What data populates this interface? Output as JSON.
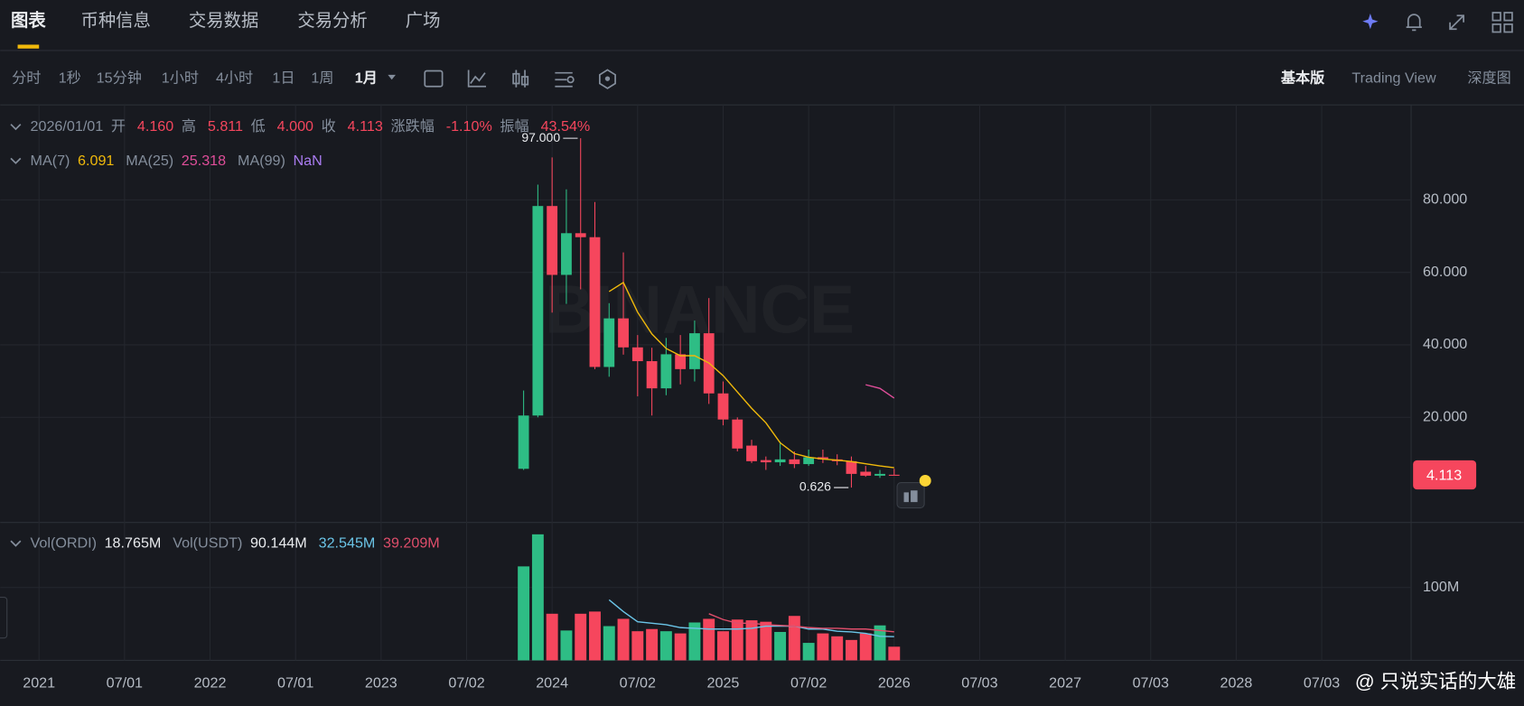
{
  "tabs": [
    "图表",
    "币种信息",
    "交易数据",
    "交易分析",
    "广场"
  ],
  "intervals": [
    "分时",
    "1秒",
    "15分钟",
    "1小时",
    "4小时",
    "1日",
    "1周",
    "1月"
  ],
  "views": [
    "基本版",
    "Trading View",
    "深度图"
  ],
  "logo_watermark": "BINANCE",
  "watermark": "@ 只说实话的大雄",
  "chart_data": [
    {
      "type": "candlestick",
      "legend": [
        {
          "text": "2026/01/01"
        },
        {
          "text": "开"
        },
        {
          "text": "4.160",
          "color": "#f6465d"
        },
        {
          "text": "高"
        },
        {
          "text": "5.811",
          "color": "#f6465d"
        },
        {
          "text": "低"
        },
        {
          "text": "4.000",
          "color": "#f6465d"
        },
        {
          "text": "收"
        },
        {
          "text": "4.113",
          "color": "#f6465d"
        },
        {
          "text": "涨跌幅"
        },
        {
          "text": "-1.10%",
          "color": "#f6465d"
        },
        {
          "text": "振幅"
        },
        {
          "text": "43.54%",
          "color": "#f6465d"
        }
      ],
      "x": [
        "2023-11",
        "2023-12",
        "2024-01",
        "2024-02",
        "2024-03",
        "2024-04",
        "2024-05",
        "2024-06",
        "2024-07",
        "2024-08",
        "2024-09",
        "2024-10",
        "2024-11",
        "2024-12",
        "2025-01",
        "2025-02",
        "2025-03",
        "2025-04",
        "2025-05",
        "2025-06",
        "2025-07",
        "2025-08",
        "2025-09",
        "2025-10",
        "2025-11",
        "2025-12",
        "2026-01"
      ],
      "open": [
        5.8,
        20.5,
        78.3,
        59.3,
        70.8,
        69.7,
        33.9,
        47.3,
        39.3,
        35.5,
        28.0,
        37.4,
        33.3,
        43.2,
        26.6,
        19.4,
        12.2,
        8.2,
        7.6,
        8.4,
        7.1,
        9.0,
        8.4,
        7.9,
        5.0,
        3.9,
        4.16
      ],
      "high": [
        27.4,
        84.2,
        91.7,
        82.9,
        97.0,
        79.4,
        51.5,
        65.5,
        42.7,
        39.2,
        41.9,
        42.7,
        46.7,
        52.9,
        29.9,
        20.0,
        13.8,
        9.2,
        13.3,
        10.6,
        11.1,
        11.1,
        9.8,
        9.2,
        6.6,
        5.5,
        5.811
      ],
      "low": [
        5.5,
        20.0,
        48.9,
        51.3,
        55.3,
        33.3,
        31.2,
        37.3,
        25.8,
        20.5,
        26.1,
        29.1,
        29.9,
        23.7,
        17.8,
        10.6,
        7.4,
        5.5,
        6.6,
        6.0,
        6.6,
        7.4,
        6.8,
        0.626,
        3.6,
        3.3,
        4.0
      ],
      "close": [
        20.5,
        78.3,
        59.3,
        70.8,
        69.7,
        33.9,
        47.3,
        39.3,
        35.5,
        28.0,
        37.4,
        33.3,
        43.2,
        26.6,
        19.4,
        11.4,
        7.9,
        7.6,
        8.4,
        7.1,
        9.0,
        8.4,
        7.9,
        4.4,
        3.9,
        4.4,
        4.113
      ],
      "up_color": "#2ebd85",
      "down_color": "#f6465d",
      "series": [
        {
          "name": "MA(7)",
          "color": "#f0b90b",
          "legend_value": "6.091",
          "values": [
            null,
            null,
            null,
            null,
            null,
            null,
            54.7,
            57.2,
            49,
            43,
            39,
            37,
            37,
            35,
            31.5,
            27,
            22.5,
            18.5,
            13,
            10,
            9,
            8.5,
            8.2,
            7.8,
            7.2,
            6.6,
            6.091
          ]
        },
        {
          "name": "MA(25)",
          "color": "#e04e9a",
          "legend_value": "25.318",
          "values": [
            null,
            null,
            null,
            null,
            null,
            null,
            null,
            null,
            null,
            null,
            null,
            null,
            null,
            null,
            null,
            null,
            null,
            null,
            null,
            null,
            null,
            null,
            null,
            null,
            29,
            28,
            25.318
          ]
        },
        {
          "name": "MA(99)",
          "color": "#a97bf0",
          "legend_value": "NaN",
          "values": [
            null,
            null,
            null,
            null,
            null,
            null,
            null,
            null,
            null,
            null,
            null,
            null,
            null,
            null,
            null,
            null,
            null,
            null,
            null,
            null,
            null,
            null,
            null,
            null,
            null,
            null,
            null
          ]
        }
      ],
      "annotations": [
        {
          "text": "97.000",
          "at": "2024-03",
          "y": 97.0
        },
        {
          "text": "0.626",
          "at": "2025-10",
          "y": 0.626
        }
      ],
      "ylim": [
        -9.0,
        106.2
      ],
      "yticks": [
        {
          "value": 20,
          "label": "20.000"
        },
        {
          "value": 40,
          "label": "40.000"
        },
        {
          "value": 60,
          "label": "60.000"
        },
        {
          "value": 80,
          "label": "80.000"
        }
      ],
      "xticks": [
        {
          "value": "2021-01",
          "label": "2021"
        },
        {
          "value": "2021-07",
          "label": "07/01"
        },
        {
          "value": "2022-01",
          "label": "2022"
        },
        {
          "value": "2022-07",
          "label": "07/01"
        },
        {
          "value": "2023-01",
          "label": "2023"
        },
        {
          "value": "2023-07",
          "label": "07/02"
        },
        {
          "value": "2024-01",
          "label": "2024"
        },
        {
          "value": "2024-07",
          "label": "07/02"
        },
        {
          "value": "2025-01",
          "label": "2025"
        },
        {
          "value": "2025-07",
          "label": "07/02"
        },
        {
          "value": "2026-01",
          "label": "2026"
        },
        {
          "value": "2026-07",
          "label": "07/03"
        },
        {
          "value": "2027-01",
          "label": "2027"
        },
        {
          "value": "2027-07",
          "label": "07/03"
        },
        {
          "value": "2028-01",
          "label": "2028"
        },
        {
          "value": "2028-07",
          "label": "07/03"
        }
      ],
      "grid": true
    },
    {
      "type": "bar",
      "legend": [
        {
          "text": "Vol(ORDI)"
        },
        {
          "text": "18.765M",
          "color": "#eaecef"
        },
        {
          "text": "Vol(USDT)"
        },
        {
          "text": "90.144M",
          "color": "#eaecef"
        },
        {
          "text": "32.545M",
          "color": "#6bc5e8"
        },
        {
          "text": "39.209M",
          "color": "#e04e6b"
        }
      ],
      "x": [
        "2023-11",
        "2023-12",
        "2024-01",
        "2024-02",
        "2024-03",
        "2024-04",
        "2024-05",
        "2024-06",
        "2024-07",
        "2024-08",
        "2024-09",
        "2024-10",
        "2024-11",
        "2024-12",
        "2025-01",
        "2025-02",
        "2025-03",
        "2025-04",
        "2025-05",
        "2025-06",
        "2025-07",
        "2025-08",
        "2025-09",
        "2025-10",
        "2025-11",
        "2025-12",
        "2026-01"
      ],
      "values": [
        129,
        173,
        64,
        41,
        64,
        67,
        47,
        57,
        40,
        43,
        40,
        37,
        52,
        57,
        40,
        56,
        55,
        53,
        39,
        61,
        24,
        37,
        33,
        28,
        37,
        48,
        18.765
      ],
      "series": [
        {
          "color": "#6bc5e8",
          "values": [
            null,
            null,
            null,
            null,
            null,
            null,
            83,
            67,
            53,
            51,
            49,
            45,
            44,
            43,
            43,
            43,
            44,
            47,
            47,
            47,
            43,
            43,
            40,
            39,
            37,
            33,
            32.545
          ]
        },
        {
          "color": "#e04e6b",
          "values": [
            null,
            null,
            null,
            null,
            null,
            null,
            null,
            null,
            null,
            null,
            null,
            null,
            null,
            64,
            56,
            51,
            51,
            49,
            48,
            47,
            45,
            44,
            44,
            43,
            43,
            41,
            39.209
          ]
        }
      ],
      "ylim": [
        0,
        189.3
      ],
      "yticks": [
        {
          "value": 100,
          "label": "100M"
        }
      ],
      "grid": true
    }
  ]
}
